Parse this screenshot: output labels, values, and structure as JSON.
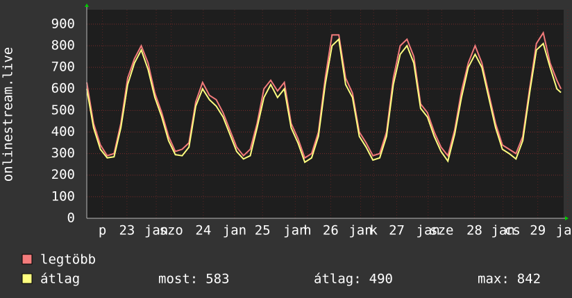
{
  "chart_data": {
    "type": "line",
    "y_label": "onlinestream.live",
    "x": [
      0,
      0.1,
      0.2,
      0.3,
      0.4,
      0.5,
      0.6,
      0.7,
      0.8,
      0.9,
      1.0,
      1.1,
      1.2,
      1.3,
      1.4,
      1.5,
      1.6,
      1.7,
      1.8,
      1.9,
      2.0,
      2.1,
      2.2,
      2.3,
      2.4,
      2.5,
      2.6,
      2.7,
      2.8,
      2.9,
      3.0,
      3.1,
      3.2,
      3.3,
      3.4,
      3.5,
      3.6,
      3.7,
      3.8,
      3.9,
      4.0,
      4.1,
      4.2,
      4.3,
      4.4,
      4.5,
      4.6,
      4.7,
      4.8,
      4.9,
      5.0,
      5.1,
      5.2,
      5.3,
      5.4,
      5.5,
      5.6,
      5.7,
      5.8,
      5.9,
      6.0,
      6.1,
      6.2,
      6.3,
      6.4,
      6.5,
      6.6,
      6.7,
      6.8,
      6.9,
      6.96
    ],
    "series": [
      {
        "name": "legtöbb",
        "color": "#f47c7c",
        "values": [
          630,
          440,
          340,
          290,
          300,
          440,
          650,
          740,
          800,
          720,
          580,
          490,
          380,
          310,
          320,
          350,
          540,
          630,
          570,
          550,
          490,
          410,
          330,
          290,
          320,
          440,
          600,
          640,
          590,
          630,
          440,
          370,
          280,
          300,
          400,
          650,
          850,
          850,
          650,
          580,
          400,
          350,
          290,
          300,
          400,
          650,
          800,
          830,
          750,
          530,
          490,
          400,
          330,
          290,
          410,
          590,
          720,
          800,
          720,
          580,
          440,
          340,
          320,
          300,
          380,
          600,
          810,
          860,
          720,
          640,
          600
        ]
      },
      {
        "name": "átlag",
        "color": "#ffff80",
        "values": [
          600,
          420,
          320,
          280,
          285,
          420,
          620,
          720,
          780,
          690,
          560,
          470,
          360,
          295,
          290,
          330,
          520,
          600,
          550,
          520,
          470,
          390,
          310,
          275,
          290,
          420,
          560,
          620,
          560,
          600,
          420,
          350,
          260,
          280,
          380,
          620,
          800,
          830,
          620,
          560,
          380,
          330,
          270,
          280,
          380,
          620,
          760,
          800,
          720,
          510,
          470,
          380,
          310,
          265,
          390,
          560,
          700,
          760,
          700,
          560,
          420,
          320,
          300,
          275,
          360,
          580,
          780,
          810,
          700,
          600,
          583
        ]
      }
    ],
    "xlim": [
      0,
      7
    ],
    "ylim": [
      0,
      967
    ],
    "yticks": [
      0,
      100,
      200,
      300,
      400,
      500,
      600,
      700,
      800,
      900
    ],
    "xticks": [
      {
        "value": 0.23,
        "label": "p"
      },
      {
        "value": 0.59,
        "label": "23"
      },
      {
        "value": 1.02,
        "label": "jan"
      },
      {
        "value": 1.24,
        "label": "szo"
      },
      {
        "value": 1.71,
        "label": "24"
      },
      {
        "value": 2.17,
        "label": "jan"
      },
      {
        "value": 2.58,
        "label": "25"
      },
      {
        "value": 3.06,
        "label": "jan"
      },
      {
        "value": 3.24,
        "label": "h"
      },
      {
        "value": 3.58,
        "label": "26"
      },
      {
        "value": 4.02,
        "label": "jan"
      },
      {
        "value": 4.21,
        "label": "k"
      },
      {
        "value": 4.55,
        "label": "27"
      },
      {
        "value": 5.01,
        "label": "jan"
      },
      {
        "value": 5.21,
        "label": "sze"
      },
      {
        "value": 5.69,
        "label": "28"
      },
      {
        "value": 6.11,
        "label": "jan"
      },
      {
        "value": 6.25,
        "label": "cs"
      },
      {
        "value": 6.62,
        "label": "29"
      },
      {
        "value": 7.06,
        "label": "jan"
      }
    ],
    "grid": true,
    "stats": [
      {
        "label": "most:",
        "value": 583
      },
      {
        "label": "átlag:",
        "value": 490
      },
      {
        "label": "max:",
        "value": 842
      }
    ]
  }
}
